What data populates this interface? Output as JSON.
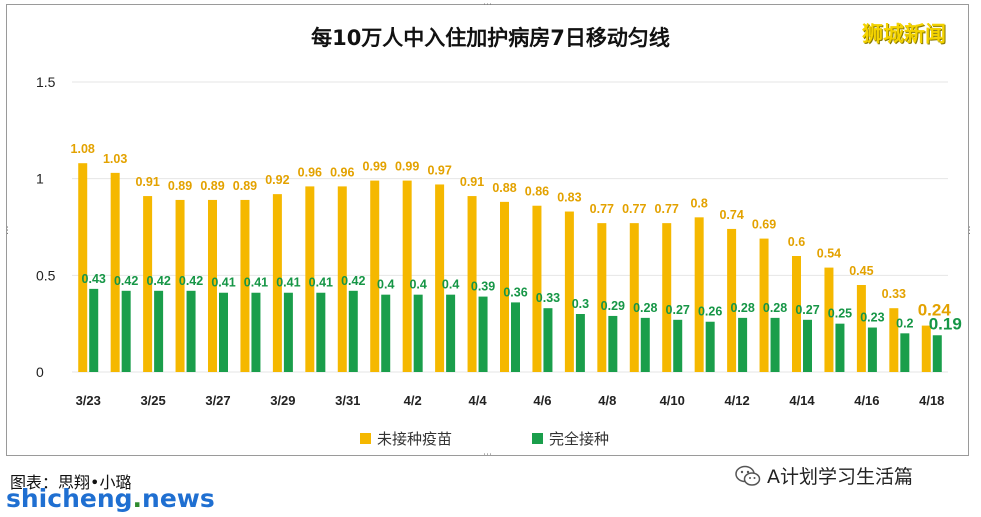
{
  "brand": "狮城新闻",
  "credit": "图表：思翔•小璐",
  "site": {
    "pre": "shicheng",
    "dot": ".",
    "post": "news"
  },
  "account": "A计划学习生活篇",
  "colors": {
    "unvaccinated": "#f5b800",
    "vaccinated": "#1a9e4b",
    "unvaccinated_label": "#e3a200",
    "vaccinated_label": "#169646",
    "grid": "#e6e6e6"
  },
  "chart_data": {
    "type": "bar",
    "title": "每10万人中入住加护病房7日移动匀线",
    "categories": [
      "3/23",
      "3/24",
      "3/25",
      "3/26",
      "3/27",
      "3/28",
      "3/29",
      "3/30",
      "3/31",
      "4/1",
      "4/2",
      "4/3",
      "4/4",
      "4/5",
      "4/6",
      "4/7",
      "4/8",
      "4/9",
      "4/10",
      "4/11",
      "4/12",
      "4/13",
      "4/14",
      "4/15",
      "4/16",
      "4/17",
      "4/18"
    ],
    "tick_labels": [
      "3/23",
      "3/25",
      "3/27",
      "3/29",
      "3/31",
      "4/2",
      "4/4",
      "4/6",
      "4/8",
      "4/10",
      "4/12",
      "4/14",
      "4/16",
      "4/18"
    ],
    "series": [
      {
        "name": "未接种疫苗",
        "values": [
          1.08,
          1.03,
          0.91,
          0.89,
          0.89,
          0.89,
          0.92,
          0.96,
          0.96,
          0.99,
          0.99,
          0.97,
          0.91,
          0.88,
          0.86,
          0.83,
          0.77,
          0.77,
          0.77,
          0.8,
          0.74,
          0.69,
          0.6,
          0.54,
          0.45,
          0.33,
          0.24
        ]
      },
      {
        "name": "完全接种",
        "values": [
          0.43,
          0.42,
          0.42,
          0.42,
          0.41,
          0.41,
          0.41,
          0.41,
          0.42,
          0.4,
          0.4,
          0.4,
          0.39,
          0.36,
          0.33,
          0.3,
          0.29,
          0.28,
          0.27,
          0.26,
          0.28,
          0.28,
          0.27,
          0.25,
          0.23,
          0.2,
          0.19
        ]
      }
    ],
    "ylim": [
      0,
      1.5
    ],
    "yticks": [
      "0",
      "0.5",
      "1",
      "1.5"
    ],
    "legend": "bottom-center",
    "grid": true
  }
}
